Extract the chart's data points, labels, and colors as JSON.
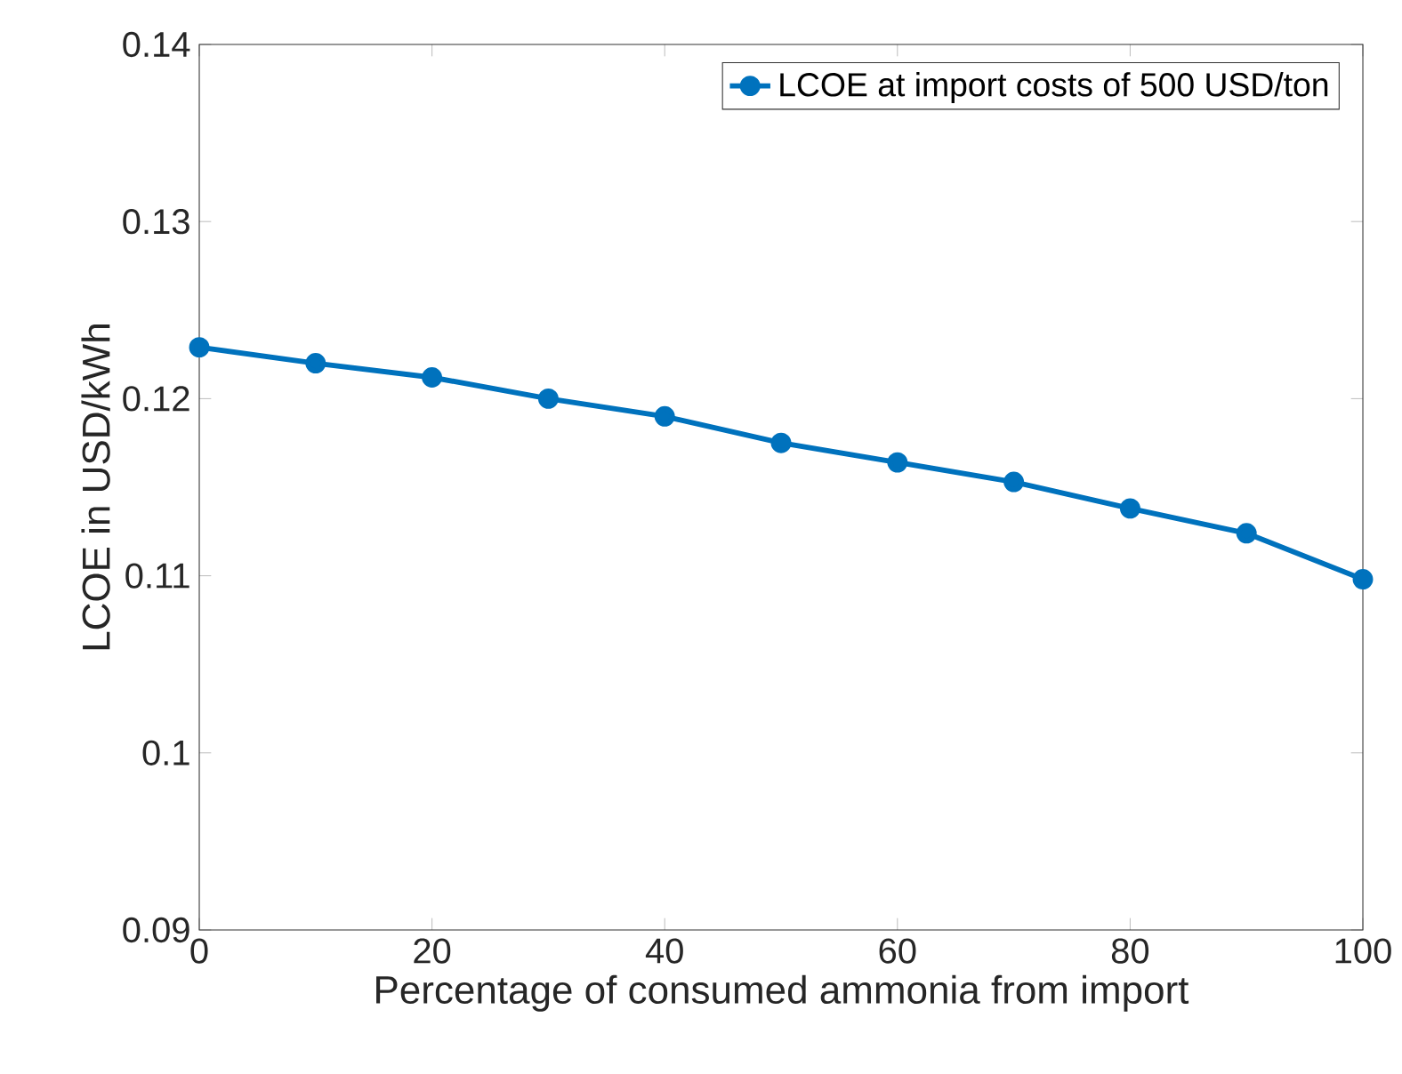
{
  "chart_data": {
    "type": "line",
    "xlabel": "Percentage of consumed ammonia from import",
    "ylabel": "LCOE in USD/kWh",
    "x": [
      0,
      10,
      20,
      30,
      40,
      50,
      60,
      70,
      80,
      90,
      100
    ],
    "series": [
      {
        "name": "LCOE at import costs of 500 USD/ton",
        "color": "#0072bd",
        "values": [
          0.1229,
          0.122,
          0.1212,
          0.12,
          0.119,
          0.1175,
          0.1164,
          0.1153,
          0.1138,
          0.1124,
          0.1098
        ]
      }
    ],
    "xlim": [
      0,
      100
    ],
    "ylim": [
      0.09,
      0.14
    ],
    "xticks": [
      0,
      20,
      40,
      60,
      80,
      100
    ],
    "yticks": [
      0.09,
      0.1,
      0.11,
      0.12,
      0.13,
      0.14
    ],
    "legend": "top right",
    "marker": "circle",
    "line_style": "solid",
    "grid": false
  }
}
